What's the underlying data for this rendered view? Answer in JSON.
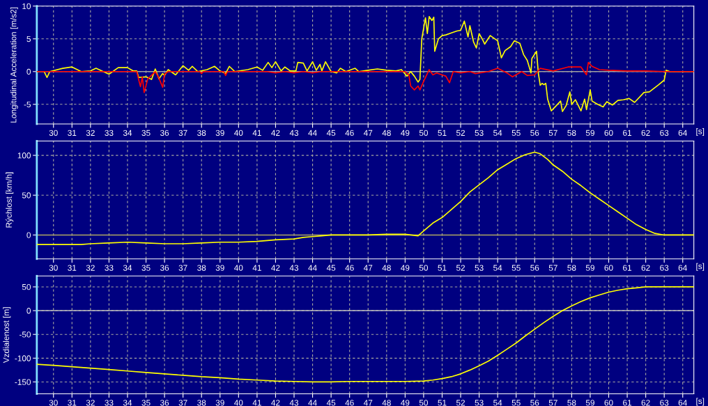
{
  "chart_data": [
    {
      "type": "line",
      "ylabel": "Longitudinal Acceleration [m/s2]",
      "xlabel": "[s]",
      "xlim": [
        29.1,
        64.6
      ],
      "xticks": [
        30,
        31,
        32,
        33,
        34,
        35,
        36,
        37,
        38,
        39,
        40,
        41,
        42,
        43,
        44,
        45,
        46,
        47,
        48,
        49,
        50,
        51,
        52,
        53,
        54,
        55,
        56,
        57,
        58,
        59,
        60,
        61,
        62,
        63,
        64
      ],
      "ylim": [
        -8,
        10
      ],
      "yticks": [
        -5,
        0,
        5,
        10
      ],
      "grid": true,
      "line_style": "solid",
      "ref_lines": [
        {
          "axis": "y",
          "value": 0,
          "color": "#a0a0a0"
        }
      ],
      "series": [
        {
          "color": "#ffff00",
          "x": [
            29.1,
            29.5,
            29.65,
            29.8,
            30.5,
            31,
            31.5,
            32,
            32.3,
            33,
            33.5,
            34,
            34.3,
            34.5,
            34.6,
            35,
            35.3,
            35.5,
            35.7,
            35.9,
            36,
            36.2,
            36.6,
            37,
            37.3,
            37.5,
            37.8,
            38.3,
            38.7,
            39,
            39.3,
            39.5,
            39.8,
            40.5,
            41,
            41.3,
            41.6,
            41.8,
            42,
            42.3,
            42.5,
            42.8,
            43.1,
            43.2,
            43.5,
            43.7,
            44,
            44.2,
            44.4,
            44.5,
            44.7,
            45,
            45.3,
            45.5,
            45.8,
            46.3,
            46.5,
            47,
            47.5,
            48,
            48.5,
            48.8,
            49.1,
            49.3,
            49.5,
            49.7,
            49.8,
            49.9,
            50.1,
            50.2,
            50.3,
            50.45,
            50.55,
            50.6,
            50.8,
            51,
            51.2,
            51.5,
            51.8,
            52,
            52.2,
            52.4,
            52.5,
            52.7,
            52.85,
            53,
            53.2,
            53.3,
            53.6,
            54,
            54.2,
            54.4,
            54.7,
            54.9,
            55.2,
            55.4,
            55.6,
            55.8,
            55.85,
            56.1,
            56.2,
            56.3,
            56.4,
            56.5,
            56.6,
            56.7,
            56.9,
            57.1,
            57.4,
            57.5,
            57.7,
            57.9,
            58,
            58.2,
            58.5,
            58.7,
            58.8,
            59,
            59.1,
            59.4,
            59.7,
            59.9,
            60.2,
            60.5,
            60.8,
            61.1,
            61.4,
            61.9,
            62.2,
            62.7,
            63,
            63.1,
            63.3,
            64.6
          ],
          "values": [
            0,
            0,
            -0.9,
            0,
            0.5,
            0.7,
            0,
            0.1,
            0.5,
            -0.4,
            0.6,
            0.6,
            0.1,
            0.1,
            -0.9,
            -0.8,
            -1.2,
            0.4,
            -1.1,
            -0.3,
            -0.6,
            0.3,
            -0.5,
            0.9,
            0.2,
            0.8,
            0,
            0.3,
            0.8,
            0.1,
            -0.3,
            0.8,
            0,
            0.3,
            0.7,
            0.2,
            1.4,
            0.6,
            1.5,
            0.1,
            0.7,
            0.1,
            0.1,
            1.4,
            1.3,
            0.1,
            1.5,
            0.2,
            1.1,
            0.1,
            1.5,
            0,
            -0.2,
            0.5,
            0,
            0.5,
            0,
            0.2,
            0.4,
            0.2,
            0.1,
            0.3,
            -0.7,
            0,
            -0.7,
            -1.6,
            -1.2,
            5,
            8.2,
            5.8,
            8.4,
            7.8,
            8.3,
            3.1,
            5,
            5.5,
            5.6,
            5.9,
            6.2,
            6.3,
            7.7,
            5.3,
            7,
            4.5,
            3.6,
            5.8,
            4.8,
            4.2,
            5.5,
            4.7,
            2.1,
            3.2,
            3.8,
            4.7,
            4.3,
            2.6,
            1.7,
            -0.2,
            2,
            3.1,
            -0.3,
            -2.1,
            -1.8,
            -2,
            -1.8,
            -4.2,
            -6,
            -5.4,
            -4.5,
            -6.1,
            -5.2,
            -3.1,
            -5,
            -4.3,
            -6,
            -4.2,
            -5.8,
            -2.8,
            -4.5,
            -5,
            -5.4,
            -4.6,
            -5.1,
            -4.4,
            -4.3,
            -4.1,
            -4.7,
            -3.2,
            -3.1,
            -2,
            -1.3,
            0.2,
            0,
            0
          ]
        },
        {
          "color": "#ff0000",
          "x": [
            29.1,
            34.5,
            34.6,
            34.7,
            34.8,
            34.9,
            35.1,
            35.5,
            35.7,
            35.9,
            36,
            36.2,
            37.9,
            38,
            38.1,
            39.2,
            39.3,
            39.4,
            41.5,
            42,
            42.5,
            43,
            43.5,
            44,
            44.5,
            45,
            49,
            49.2,
            49.3,
            49.5,
            49.7,
            49.8,
            50,
            50.2,
            50.3,
            50.5,
            50.7,
            51.2,
            51.4,
            51.6,
            52,
            52.5,
            52.8,
            53.5,
            54,
            54.5,
            54.8,
            55.3,
            55.6,
            56,
            56.3,
            57,
            57.8,
            58.5,
            58.8,
            58.9,
            59.1,
            59.5,
            60,
            61,
            62,
            63,
            64.6
          ],
          "values": [
            0,
            0,
            -1.2,
            -2.3,
            -0.8,
            -3.2,
            -1.1,
            0,
            -1,
            -2.4,
            -0.4,
            0,
            0,
            -0.3,
            0,
            0,
            -0.6,
            0,
            0,
            -0.2,
            0,
            -0.2,
            0,
            -0.2,
            0,
            0,
            0,
            -0.5,
            -2.2,
            -2.8,
            -2.2,
            -2.8,
            -1.5,
            -0.3,
            0.3,
            -0.5,
            -0.2,
            -0.7,
            -1.7,
            0,
            -0.2,
            0,
            -0.3,
            0,
            0.5,
            -0.2,
            -0.8,
            0,
            -0.6,
            -0.5,
            0.5,
            0.1,
            0.7,
            0.7,
            -0.5,
            1.4,
            0.8,
            0.3,
            0.2,
            0.1,
            0.1,
            0,
            0
          ]
        }
      ]
    },
    {
      "type": "line",
      "ylabel": "Rýchlost [km/h]",
      "xlabel": "[s]",
      "xlim": [
        29.1,
        64.6
      ],
      "xticks": [
        30,
        31,
        32,
        33,
        34,
        35,
        36,
        37,
        38,
        39,
        40,
        41,
        42,
        43,
        44,
        45,
        46,
        47,
        48,
        49,
        50,
        51,
        52,
        53,
        54,
        55,
        56,
        57,
        58,
        59,
        60,
        61,
        62,
        63,
        64
      ],
      "ylim": [
        -30,
        118
      ],
      "yticks": [
        0,
        50,
        100
      ],
      "grid": true,
      "line_style": "solid",
      "ref_lines": [
        {
          "axis": "y",
          "value": 0,
          "color": "#b0a860"
        }
      ],
      "series": [
        {
          "color": "#ffff00",
          "x": [
            29.1,
            31.5,
            32,
            33,
            34,
            35,
            36,
            37,
            38,
            39,
            40,
            41,
            42,
            43,
            43.5,
            44,
            44.5,
            45,
            47,
            48,
            49,
            49.7,
            50,
            50.5,
            51,
            51.5,
            52,
            52.5,
            53,
            53.5,
            54,
            54.5,
            55,
            55.5,
            56,
            56.3,
            56.7,
            57,
            57.5,
            58,
            58.5,
            59,
            59.5,
            60,
            60.5,
            61,
            61.5,
            62,
            62.5,
            63,
            64.6
          ],
          "values": [
            -12,
            -12,
            -11,
            -10,
            -9,
            -10,
            -11,
            -11,
            -10,
            -9,
            -9,
            -8,
            -6,
            -5,
            -3,
            -2,
            -1,
            0,
            0,
            1,
            1,
            -1,
            5,
            15,
            22,
            32,
            42,
            54,
            63,
            72,
            82,
            89,
            96,
            101,
            104,
            102,
            95,
            88,
            80,
            70,
            62,
            53,
            45,
            37,
            29,
            21,
            13,
            7,
            2,
            0,
            0
          ]
        }
      ]
    },
    {
      "type": "line",
      "ylabel": "Vzdialenost [m]",
      "xlabel": "[s]",
      "xlim": [
        29.1,
        64.6
      ],
      "xticks": [
        30,
        31,
        32,
        33,
        34,
        35,
        36,
        37,
        38,
        39,
        40,
        41,
        42,
        43,
        44,
        45,
        46,
        47,
        48,
        49,
        50,
        51,
        52,
        53,
        54,
        55,
        56,
        57,
        58,
        59,
        60,
        61,
        62,
        63,
        64
      ],
      "ylim": [
        -175,
        73
      ],
      "yticks": [
        -150,
        -100,
        -50,
        0,
        50
      ],
      "grid": true,
      "line_style": "solid",
      "ref_lines": [
        {
          "axis": "y",
          "value": 0,
          "color": "#c0c0c0"
        }
      ],
      "series": [
        {
          "color": "#ffff00",
          "x": [
            29.1,
            30,
            31,
            32,
            33,
            34,
            35,
            36,
            37,
            38,
            39,
            40,
            41,
            42,
            43,
            44,
            45,
            46,
            47,
            48,
            49,
            50,
            50.5,
            51,
            51.5,
            52,
            52.5,
            53,
            53.5,
            54,
            54.5,
            55,
            55.5,
            56,
            56.5,
            57,
            57.5,
            58,
            58.5,
            59,
            59.5,
            60,
            60.5,
            61,
            61.5,
            62,
            63,
            64.6
          ],
          "values": [
            -113,
            -115,
            -118,
            -121,
            -124,
            -127,
            -130,
            -133,
            -136,
            -139,
            -141,
            -144,
            -146,
            -148,
            -149,
            -150,
            -150,
            -149,
            -149,
            -149,
            -149,
            -148,
            -146,
            -143,
            -139,
            -133,
            -125,
            -116,
            -106,
            -94,
            -81,
            -68,
            -53,
            -39,
            -25,
            -12,
            0,
            10,
            19,
            27,
            33,
            39,
            43,
            46,
            48,
            50,
            50,
            50
          ]
        }
      ]
    }
  ]
}
